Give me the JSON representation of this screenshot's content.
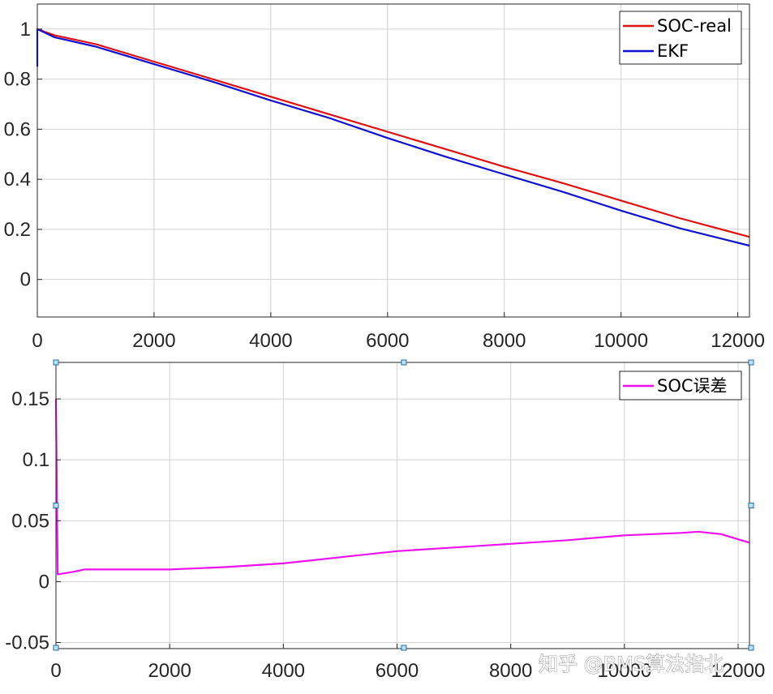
{
  "chart_data": [
    {
      "type": "line",
      "xlim": [
        0,
        12200
      ],
      "ylim": [
        -0.15,
        1.1
      ],
      "xticks": [
        0,
        2000,
        4000,
        6000,
        8000,
        10000,
        12000
      ],
      "yticks": [
        0,
        0.2,
        0.4,
        0.6,
        0.8,
        1
      ],
      "ytick_labels": [
        "0",
        "0.2",
        "0.4",
        "0.6",
        "0.8",
        "1"
      ],
      "xtick_labels": [
        "0",
        "2000",
        "4000",
        "6000",
        "8000",
        "10000",
        "12000"
      ],
      "grid": true,
      "legend_position": "top-right",
      "x": [
        0,
        300,
        1000,
        2000,
        3000,
        4000,
        5000,
        6000,
        7000,
        8000,
        9000,
        10000,
        11000,
        12200
      ],
      "series": [
        {
          "name": "SOC-real",
          "color": "#e01010",
          "values": [
            1.0,
            0.975,
            0.94,
            0.87,
            0.8,
            0.73,
            0.66,
            0.59,
            0.52,
            0.45,
            0.385,
            0.315,
            0.245,
            0.17
          ]
        },
        {
          "name": "EKF",
          "color": "#1010d0",
          "values": [
            1.0,
            0.967,
            0.93,
            0.86,
            0.79,
            0.715,
            0.645,
            0.565,
            0.49,
            0.42,
            0.35,
            0.275,
            0.205,
            0.135
          ]
        }
      ],
      "ekf_initial_value": 0.85
    },
    {
      "type": "line",
      "xlim": [
        0,
        12200
      ],
      "ylim": [
        -0.055,
        0.18
      ],
      "xticks": [
        0,
        2000,
        4000,
        6000,
        8000,
        10000,
        12000
      ],
      "yticks": [
        -0.05,
        0,
        0.05,
        0.1,
        0.15
      ],
      "ytick_labels": [
        "-0.05",
        "0",
        "0.05",
        "0.1",
        "0.15"
      ],
      "xtick_labels": [
        "0",
        "2000",
        "4000",
        "6000",
        "8000",
        "10000",
        "12000"
      ],
      "grid": true,
      "legend_position": "top-right",
      "x": [
        0,
        30,
        300,
        500,
        1000,
        2000,
        3000,
        4000,
        5000,
        6000,
        7000,
        8000,
        9000,
        10000,
        11000,
        11300,
        11700,
        12200
      ],
      "series": [
        {
          "name": "SOC误差",
          "color": "#ee10ee",
          "values": [
            0.15,
            0.006,
            0.008,
            0.01,
            0.01,
            0.01,
            0.012,
            0.015,
            0.02,
            0.025,
            0.028,
            0.031,
            0.034,
            0.038,
            0.04,
            0.041,
            0.039,
            0.032
          ]
        }
      ]
    }
  ],
  "watermark": "知乎 @BMS算法指北",
  "colors": {
    "grid": "#d3d3d3",
    "axis": "#262626"
  }
}
